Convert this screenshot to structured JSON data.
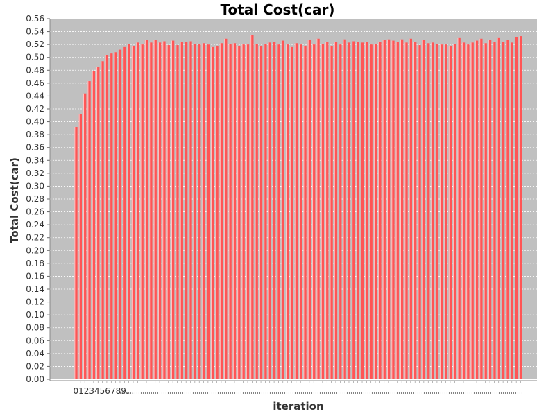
{
  "chart_data": {
    "type": "bar",
    "title": "Total Cost(car)",
    "xlabel": "iteration",
    "ylabel": "Total Cost(car)",
    "ylim": [
      0,
      0.56
    ],
    "yticks": [
      "0.00",
      "0.02",
      "0.04",
      "0.06",
      "0.08",
      "0.10",
      "0.12",
      "0.14",
      "0.16",
      "0.18",
      "0.20",
      "0.22",
      "0.24",
      "0.26",
      "0.28",
      "0.30",
      "0.32",
      "0.34",
      "0.36",
      "0.38",
      "0.40",
      "0.42",
      "0.44",
      "0.46",
      "0.48",
      "0.50",
      "0.52",
      "0.54",
      "0.56"
    ],
    "xtick_text": "0123456789...",
    "grid": true,
    "colors": {
      "bar": "#ff5555",
      "plot_background": "#c0c0c0",
      "grid": "#ffffff"
    },
    "values": [
      0.392,
      0.412,
      0.444,
      0.463,
      0.479,
      0.485,
      0.494,
      0.503,
      0.506,
      0.508,
      0.512,
      0.516,
      0.521,
      0.518,
      0.523,
      0.52,
      0.527,
      0.523,
      0.527,
      0.523,
      0.525,
      0.519,
      0.526,
      0.519,
      0.524,
      0.524,
      0.525,
      0.521,
      0.521,
      0.522,
      0.52,
      0.516,
      0.518,
      0.522,
      0.529,
      0.521,
      0.522,
      0.517,
      0.52,
      0.52,
      0.535,
      0.521,
      0.518,
      0.521,
      0.523,
      0.524,
      0.52,
      0.526,
      0.52,
      0.516,
      0.522,
      0.52,
      0.517,
      0.527,
      0.52,
      0.529,
      0.521,
      0.524,
      0.517,
      0.524,
      0.52,
      0.528,
      0.523,
      0.525,
      0.524,
      0.523,
      0.524,
      0.52,
      0.521,
      0.524,
      0.527,
      0.528,
      0.526,
      0.524,
      0.528,
      0.523,
      0.529,
      0.524,
      0.519,
      0.527,
      0.522,
      0.523,
      0.521,
      0.52,
      0.52,
      0.518,
      0.521,
      0.53,
      0.523,
      0.52,
      0.523,
      0.526,
      0.529,
      0.522,
      0.527,
      0.524,
      0.53,
      0.524,
      0.527,
      0.523,
      0.531,
      0.533
    ]
  }
}
